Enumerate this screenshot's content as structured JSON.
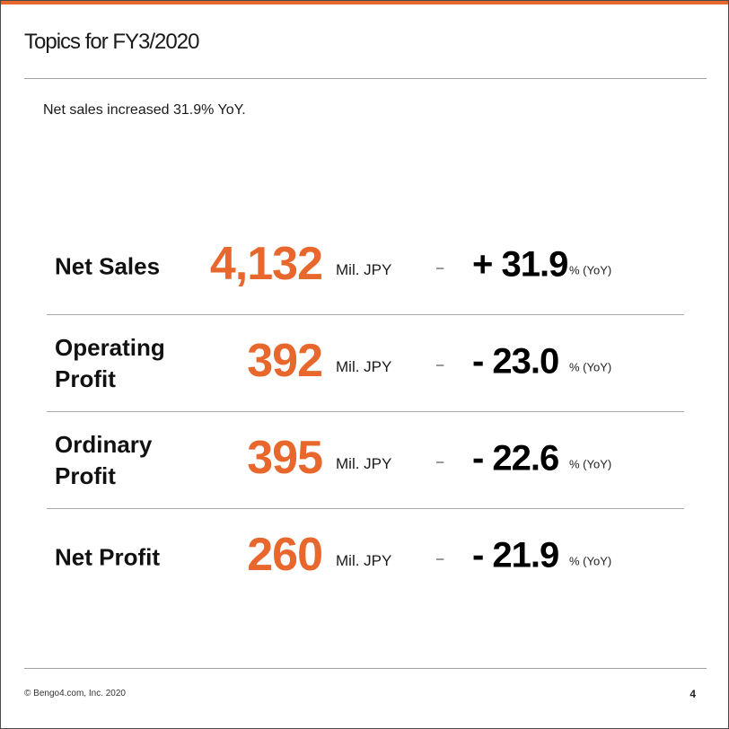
{
  "brand": {
    "accent_color": "#e8672c",
    "bar_color": "#e8672c"
  },
  "header": {
    "title": "Topics for FY3/2020"
  },
  "summary": "Net sales increased 31.9% YoY.",
  "metrics": [
    {
      "label": "Net Sales",
      "value": "4,132",
      "unit": "Mil. JPY",
      "dash": "–",
      "change": "+ 31.9",
      "suffix": "% (YoY)"
    },
    {
      "label": "Operating Profit",
      "value": "392",
      "unit": "Mil. JPY",
      "dash": "–",
      "change": "- 23.0",
      "suffix": "% (YoY)"
    },
    {
      "label": "Ordinary Profit",
      "value": "395",
      "unit": "Mil. JPY",
      "dash": "–",
      "change": "- 22.6",
      "suffix": "% (YoY)"
    },
    {
      "label": "Net Profit",
      "value": "260",
      "unit": "Mil. JPY",
      "dash": "–",
      "change": "- 21.9",
      "suffix": "% (YoY)"
    }
  ],
  "footer": {
    "copyright": "© Bengo4.com, Inc. 2020",
    "page_number": "4"
  }
}
